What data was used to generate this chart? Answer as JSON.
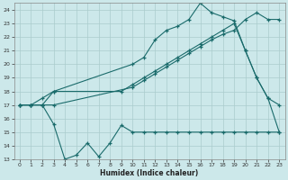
{
  "xlabel": "Humidex (Indice chaleur)",
  "xlim": [
    -0.5,
    23.5
  ],
  "ylim": [
    13,
    24.5
  ],
  "yticks": [
    13,
    14,
    15,
    16,
    17,
    18,
    19,
    20,
    21,
    22,
    23,
    24
  ],
  "xticks": [
    0,
    1,
    2,
    3,
    4,
    5,
    6,
    7,
    8,
    9,
    10,
    11,
    12,
    13,
    14,
    15,
    16,
    17,
    18,
    19,
    20,
    21,
    22,
    23
  ],
  "bg_color": "#cce8ea",
  "grid_color": "#aacccc",
  "line_color": "#1a6b6b",
  "line1_x": [
    0,
    1,
    2,
    3,
    4,
    5,
    6,
    7,
    8,
    9,
    10,
    11,
    12,
    13,
    14,
    15,
    16,
    17,
    18,
    19,
    20,
    21,
    22,
    23
  ],
  "line1_y": [
    17,
    17,
    17,
    15.6,
    13.0,
    13.3,
    14.2,
    13.2,
    14.2,
    15.5,
    15.0,
    15.0,
    15.0,
    15.0,
    15.0,
    15.0,
    15.0,
    15.0,
    15.0,
    15.0,
    15.0,
    15.0,
    15.0,
    15.0
  ],
  "line2_x": [
    0,
    1,
    2,
    3,
    10,
    11,
    12,
    13,
    14,
    15,
    16,
    17,
    18,
    19,
    20,
    21,
    22,
    23
  ],
  "line2_y": [
    17,
    17,
    17.5,
    18.0,
    20.0,
    20.5,
    21.8,
    22.5,
    22.8,
    23.3,
    24.5,
    23.8,
    23.5,
    23.2,
    21.0,
    19.0,
    17.5,
    15.0
  ],
  "line3_x": [
    0,
    1,
    2,
    3,
    10,
    11,
    12,
    13,
    14,
    15,
    16,
    17,
    18,
    19,
    20,
    21,
    22,
    23
  ],
  "line3_y": [
    17,
    17,
    17,
    17.0,
    18.3,
    18.8,
    19.3,
    19.8,
    20.3,
    20.8,
    21.3,
    21.8,
    22.2,
    22.5,
    23.3,
    23.8,
    23.3,
    23.3
  ],
  "line4_x": [
    0,
    1,
    2,
    3,
    9,
    10,
    11,
    12,
    13,
    14,
    15,
    16,
    17,
    18,
    19,
    20,
    21,
    22,
    23
  ],
  "line4_y": [
    17,
    17,
    17,
    18.0,
    18.0,
    18.5,
    19.0,
    19.5,
    20.0,
    20.5,
    21.0,
    21.5,
    22.0,
    22.5,
    23.0,
    21.0,
    19.0,
    17.5,
    17.0
  ]
}
